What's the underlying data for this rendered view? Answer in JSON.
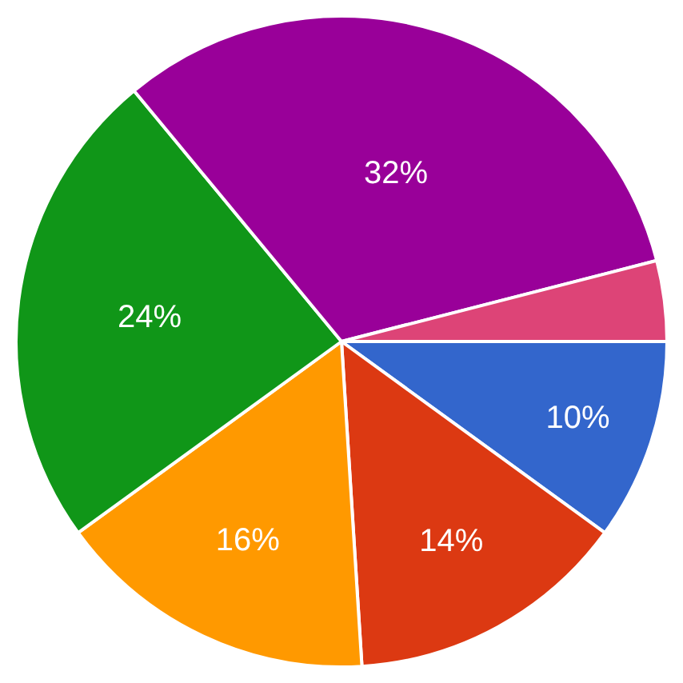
{
  "chart_data": {
    "type": "pie",
    "categories": [
      null,
      null,
      null,
      null,
      null,
      null
    ],
    "values": [
      10,
      14,
      16,
      24,
      32,
      4
    ],
    "colors": [
      "#3366cc",
      "#dc3912",
      "#ff9900",
      "#109618",
      "#990099",
      "#dd4477"
    ],
    "value_labels": [
      "10%",
      "14%",
      "16%",
      "24%",
      "32%",
      null
    ],
    "legend": false
  }
}
